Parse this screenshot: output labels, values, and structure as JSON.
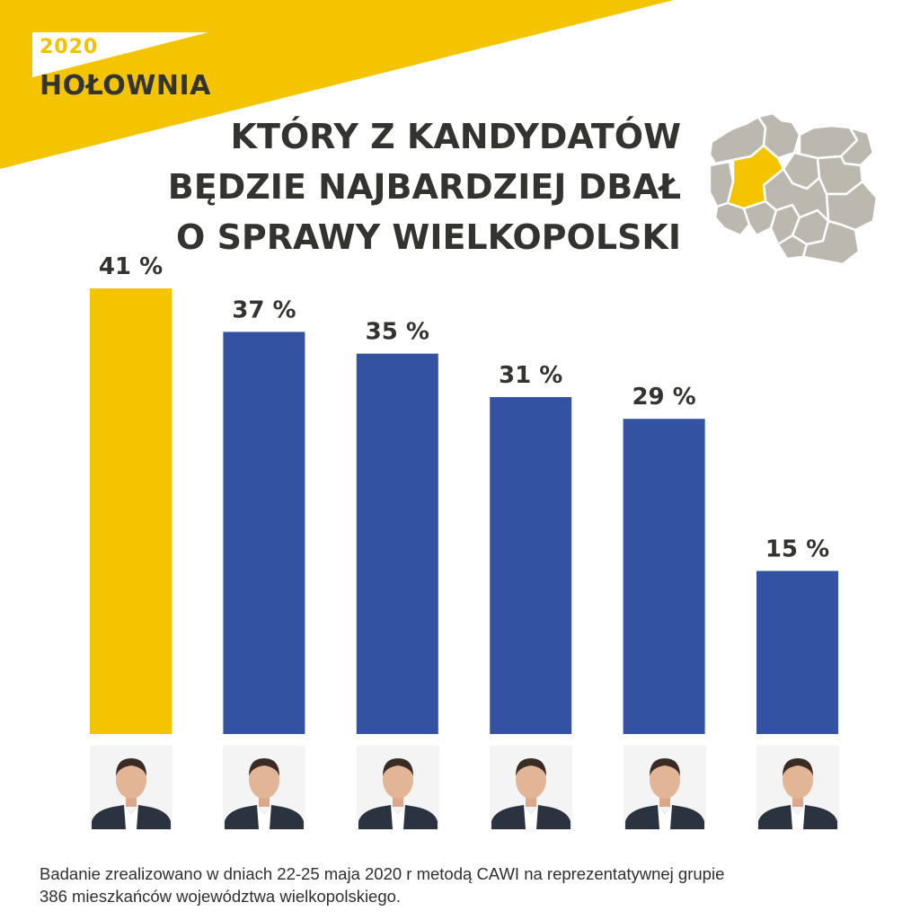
{
  "brand": {
    "year": "2020",
    "name": "HOŁOWNIA"
  },
  "title": {
    "line1": "KTÓRY Z KANDYDATÓW",
    "line2": "BĘDZIE NAJBARDZIEJ DBAŁ",
    "line3": "O SPRAWY WIELKOPOLSKI"
  },
  "colors": {
    "accent": "#f5c400",
    "bar_blue": "#3353a2",
    "text_dark": "#333330",
    "map_gray": "#bcb8b0"
  },
  "chart_data": {
    "type": "bar",
    "title": "KTÓRY Z KANDYDATÓW BĘDZIE NAJBARDZIEJ DBAŁ O SPRAWY WIELKOPOLSKI",
    "values": [
      41,
      37,
      35,
      31,
      29,
      15
    ],
    "labels": [
      "41 %",
      "37 %",
      "35 %",
      "31 %",
      "29 %",
      "15 %"
    ],
    "highlight_index": 0,
    "bar_colors": [
      "#f5c400",
      "#3353a2",
      "#3353a2",
      "#3353a2",
      "#3353a2",
      "#3353a2"
    ],
    "ylim": [
      0,
      41
    ],
    "grid": false,
    "legend": "none",
    "category_markers": "candidate portrait photos"
  },
  "footnote": {
    "line1": "Badanie zrealizowano w dniach 22-25 maja 2020 r metodą CAWI na reprezentatywnej grupie",
    "line2": "386 mieszkańców województwa wielkopolskiego."
  }
}
